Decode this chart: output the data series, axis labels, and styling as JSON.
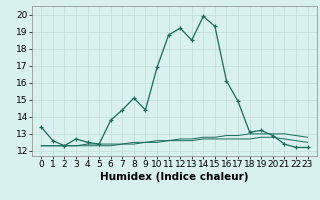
{
  "xlabel": "Humidex (Indice chaleur)",
  "x": [
    0,
    1,
    2,
    3,
    4,
    5,
    6,
    7,
    8,
    9,
    10,
    11,
    12,
    13,
    14,
    15,
    16,
    17,
    18,
    19,
    20,
    21,
    22,
    23
  ],
  "y_main": [
    13.4,
    12.6,
    12.3,
    12.7,
    12.5,
    12.4,
    13.8,
    14.4,
    15.1,
    14.4,
    16.9,
    18.8,
    19.2,
    18.5,
    19.9,
    19.3,
    16.1,
    14.9,
    13.1,
    13.2,
    12.9,
    12.4,
    12.2,
    12.2
  ],
  "y_line2": [
    12.3,
    12.3,
    12.3,
    12.3,
    12.3,
    12.3,
    12.3,
    12.4,
    12.4,
    12.5,
    12.6,
    12.6,
    12.7,
    12.7,
    12.8,
    12.8,
    12.9,
    12.9,
    13.0,
    13.0,
    13.0,
    13.0,
    12.9,
    12.8
  ],
  "y_line3": [
    12.3,
    12.3,
    12.3,
    12.3,
    12.4,
    12.4,
    12.4,
    12.4,
    12.5,
    12.5,
    12.5,
    12.6,
    12.6,
    12.6,
    12.7,
    12.7,
    12.7,
    12.7,
    12.7,
    12.8,
    12.8,
    12.7,
    12.6,
    12.5
  ],
  "line_color": "#1a6b5a",
  "bg_color": "#d8f0ee",
  "grid_color": "#c0ddd9",
  "ylim": [
    11.7,
    20.5
  ],
  "yticks": [
    12,
    13,
    14,
    15,
    16,
    17,
    18,
    19,
    20
  ],
  "xticks": [
    0,
    1,
    2,
    3,
    4,
    5,
    6,
    7,
    8,
    9,
    10,
    11,
    12,
    13,
    14,
    15,
    16,
    17,
    18,
    19,
    20,
    21,
    22,
    23
  ],
  "tick_fontsize": 6.5,
  "label_fontsize": 7.5,
  "xlim": [
    -0.8,
    23.8
  ]
}
